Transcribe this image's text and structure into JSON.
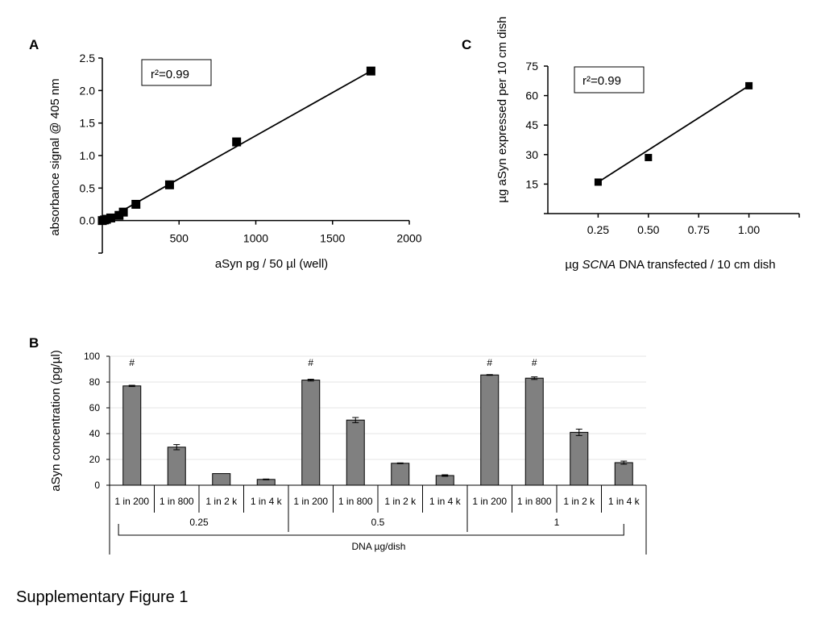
{
  "caption": "Supplementary Figure 1",
  "chart_data": [
    {
      "panel": "A",
      "type": "scatter",
      "xlabel": "aSyn pg / 50 µl (well)",
      "ylabel": "absorbance signal @ 405 nm",
      "annotation": "r²=0.99",
      "xlim": [
        0,
        2000
      ],
      "ylim": [
        -0.5,
        2.5
      ],
      "x_ticks": [
        500,
        1000,
        1500,
        2000
      ],
      "y_ticks": [
        0.0,
        0.5,
        1.0,
        1.5,
        2.0,
        2.5
      ],
      "points": [
        {
          "x": 0,
          "y": 0.0
        },
        {
          "x": 14,
          "y": 0.01
        },
        {
          "x": 27,
          "y": 0.02
        },
        {
          "x": 55,
          "y": 0.04
        },
        {
          "x": 109,
          "y": 0.08
        },
        {
          "x": 137,
          "y": 0.13
        },
        {
          "x": 219,
          "y": 0.25
        },
        {
          "x": 438,
          "y": 0.55
        },
        {
          "x": 875,
          "y": 1.21
        },
        {
          "x": 1750,
          "y": 2.3
        }
      ],
      "fit_line": [
        {
          "x": 0,
          "y": -0.02
        },
        {
          "x": 1750,
          "y": 2.3
        }
      ]
    },
    {
      "panel": "C",
      "type": "scatter",
      "xlabel_pre": "µg ",
      "xlabel_italic": "SCNA",
      "xlabel_post": " DNA transfected / 10 cm dish",
      "ylabel": "µg aSyn expressed per 10 cm dish",
      "annotation": "r²=0.99",
      "xlim": [
        0,
        1.25
      ],
      "ylim": [
        0,
        75
      ],
      "x_ticks": [
        "0.25",
        "0.50",
        "0.75",
        "1.00"
      ],
      "y_ticks": [
        15,
        30,
        45,
        60,
        75
      ],
      "points": [
        {
          "x": 0.25,
          "y": 16
        },
        {
          "x": 0.5,
          "y": 28.5
        },
        {
          "x": 1.0,
          "y": 65
        }
      ],
      "fit_line": [
        {
          "x": 0.25,
          "y": 16
        },
        {
          "x": 1.0,
          "y": 65
        }
      ]
    },
    {
      "panel": "B",
      "type": "bar",
      "ylabel": "aSyn concentration (pg/µl)",
      "ylim": [
        0,
        100
      ],
      "y_ticks": [
        0,
        20,
        40,
        60,
        80,
        100
      ],
      "categories": [
        "1 in 200",
        "1 in 800",
        "1 in 2 k",
        "1 in 4 k",
        "1 in 200",
        "1 in 800",
        "1 in 2 k",
        "1 in 4 k",
        "1 in 200",
        "1 in 800",
        "1 in 2 k",
        "1 in 4 k"
      ],
      "values": [
        77,
        29.5,
        9,
        4.5,
        81.5,
        50.5,
        17,
        7.5,
        85.5,
        83,
        41,
        17.5
      ],
      "errors": [
        0.5,
        2,
        0,
        0.3,
        0.7,
        2,
        0.3,
        0.6,
        0.3,
        1,
        2.5,
        1.2
      ],
      "significance": [
        "#",
        "",
        "",
        "",
        "#",
        "",
        "",
        "",
        "#",
        "#",
        "",
        ""
      ],
      "groups": [
        {
          "label": "0.25",
          "start": 0,
          "end": 3
        },
        {
          "label": "0.5",
          "start": 4,
          "end": 7
        },
        {
          "label": "1",
          "start": 8,
          "end": 11
        }
      ],
      "group_axis_label": "DNA µg/dish",
      "bar_color": "#808080"
    }
  ]
}
